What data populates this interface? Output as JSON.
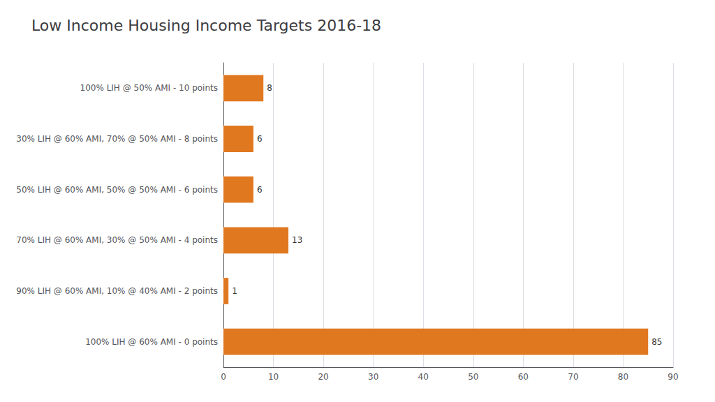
{
  "chart_data": {
    "type": "bar",
    "orientation": "horizontal",
    "title": "Low Income Housing Income Targets 2016-18",
    "categories": [
      "100% LIH @ 60% AMI - 0 points",
      "90% LIH @ 60% AMI, 10% @ 40% AMI - 2 points",
      "70% LIH @ 60% AMI, 30% @ 50% AMI - 4 points",
      "50% LIH @ 60% AMI, 50% @ 50% AMI - 6 points",
      "30% LIH @ 60% AMI, 70% @ 50% AMI - 8 points",
      "100% LIH @ 50% AMI - 10 points"
    ],
    "values": [
      85,
      1,
      13,
      6,
      6,
      8
    ],
    "color": "#e07820",
    "xlim": [
      0,
      90
    ],
    "xticks": [
      0,
      10,
      20,
      30,
      40,
      50,
      60,
      70,
      80,
      90
    ],
    "grid": true,
    "data_labels": true
  }
}
